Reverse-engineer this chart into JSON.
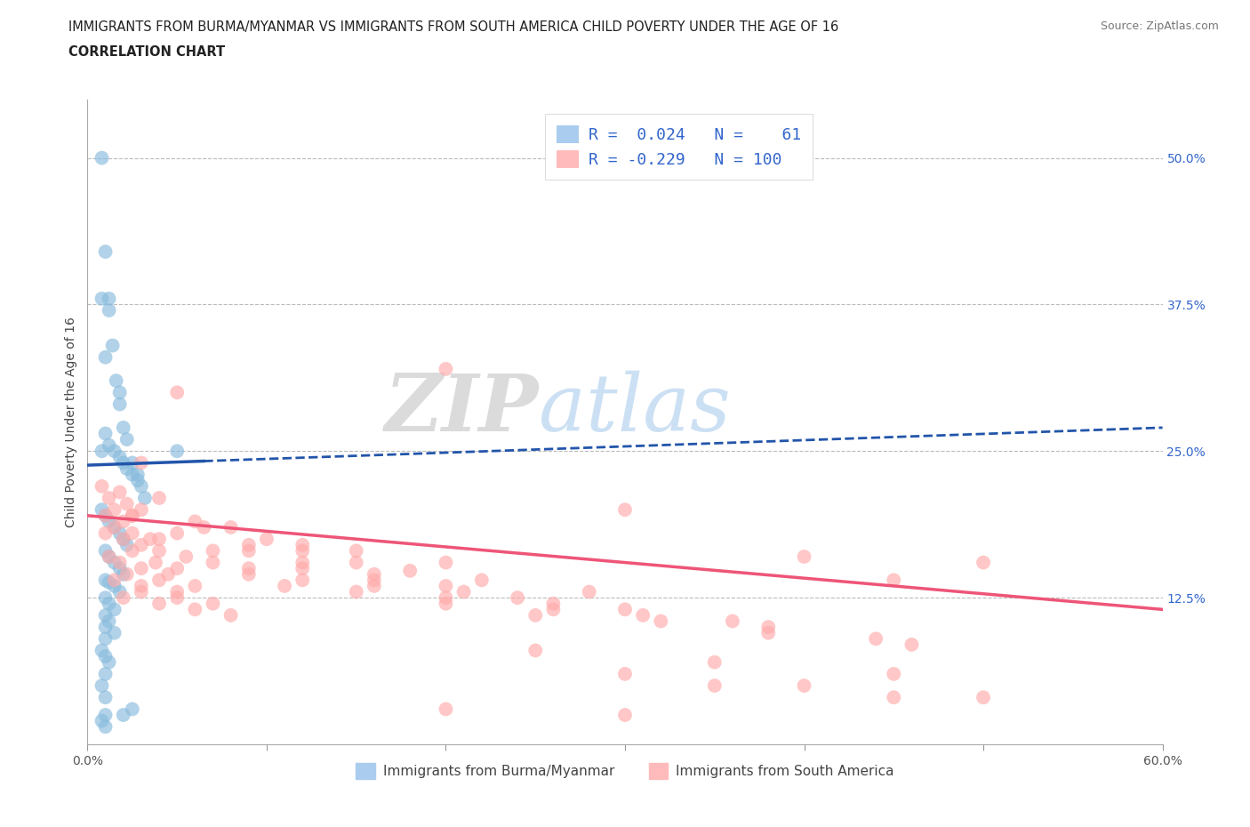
{
  "title_line1": "IMMIGRANTS FROM BURMA/MYANMAR VS IMMIGRANTS FROM SOUTH AMERICA CHILD POVERTY UNDER THE AGE OF 16",
  "title_line2": "CORRELATION CHART",
  "source_text": "Source: ZipAtlas.com",
  "ylabel": "Child Poverty Under the Age of 16",
  "xlim": [
    0.0,
    0.6
  ],
  "ylim": [
    0.0,
    0.55
  ],
  "hlines": [
    0.125,
    0.25,
    0.375,
    0.5
  ],
  "blue_color": "#88BBDD",
  "pink_color": "#FFAAAA",
  "blue_line_color": "#2255AA",
  "pink_line_color": "#EE5577",
  "blue_scatter_x": [
    0.008,
    0.01,
    0.012,
    0.014,
    0.016,
    0.018,
    0.02,
    0.022,
    0.025,
    0.028,
    0.01,
    0.012,
    0.015,
    0.018,
    0.02,
    0.022,
    0.025,
    0.028,
    0.03,
    0.032,
    0.008,
    0.01,
    0.012,
    0.015,
    0.018,
    0.02,
    0.022,
    0.01,
    0.012,
    0.015,
    0.018,
    0.02,
    0.01,
    0.012,
    0.015,
    0.018,
    0.01,
    0.012,
    0.015,
    0.01,
    0.012,
    0.01,
    0.015,
    0.01,
    0.008,
    0.01,
    0.012,
    0.01,
    0.008,
    0.01,
    0.025,
    0.02,
    0.008,
    0.05,
    0.008,
    0.01,
    0.012,
    0.018,
    0.01,
    0.008,
    0.01
  ],
  "blue_scatter_y": [
    0.5,
    0.42,
    0.38,
    0.34,
    0.31,
    0.29,
    0.27,
    0.26,
    0.24,
    0.23,
    0.265,
    0.255,
    0.25,
    0.245,
    0.24,
    0.235,
    0.23,
    0.225,
    0.22,
    0.21,
    0.2,
    0.195,
    0.19,
    0.185,
    0.18,
    0.175,
    0.17,
    0.165,
    0.16,
    0.155,
    0.15,
    0.145,
    0.14,
    0.138,
    0.135,
    0.13,
    0.125,
    0.12,
    0.115,
    0.11,
    0.105,
    0.1,
    0.095,
    0.09,
    0.08,
    0.075,
    0.07,
    0.06,
    0.05,
    0.04,
    0.03,
    0.025,
    0.02,
    0.25,
    0.38,
    0.33,
    0.37,
    0.3,
    0.025,
    0.25,
    0.015
  ],
  "pink_scatter_x": [
    0.008,
    0.01,
    0.012,
    0.015,
    0.018,
    0.02,
    0.022,
    0.025,
    0.01,
    0.015,
    0.02,
    0.025,
    0.03,
    0.035,
    0.04,
    0.012,
    0.018,
    0.025,
    0.03,
    0.038,
    0.045,
    0.05,
    0.015,
    0.022,
    0.03,
    0.04,
    0.05,
    0.06,
    0.02,
    0.03,
    0.04,
    0.05,
    0.06,
    0.07,
    0.08,
    0.025,
    0.04,
    0.055,
    0.07,
    0.09,
    0.11,
    0.03,
    0.05,
    0.07,
    0.09,
    0.12,
    0.15,
    0.04,
    0.065,
    0.09,
    0.12,
    0.16,
    0.2,
    0.06,
    0.09,
    0.12,
    0.16,
    0.2,
    0.25,
    0.08,
    0.12,
    0.16,
    0.21,
    0.26,
    0.1,
    0.15,
    0.2,
    0.26,
    0.32,
    0.12,
    0.18,
    0.24,
    0.31,
    0.38,
    0.15,
    0.22,
    0.3,
    0.38,
    0.46,
    0.2,
    0.28,
    0.36,
    0.44,
    0.2,
    0.3,
    0.4,
    0.5,
    0.25,
    0.35,
    0.45,
    0.3,
    0.4,
    0.5,
    0.35,
    0.45,
    0.03,
    0.05,
    0.2,
    0.3,
    0.45
  ],
  "pink_scatter_y": [
    0.22,
    0.195,
    0.21,
    0.2,
    0.215,
    0.19,
    0.205,
    0.195,
    0.18,
    0.185,
    0.175,
    0.18,
    0.17,
    0.175,
    0.165,
    0.16,
    0.155,
    0.165,
    0.15,
    0.155,
    0.145,
    0.15,
    0.14,
    0.145,
    0.135,
    0.14,
    0.13,
    0.135,
    0.125,
    0.13,
    0.12,
    0.125,
    0.115,
    0.12,
    0.11,
    0.195,
    0.175,
    0.16,
    0.155,
    0.145,
    0.135,
    0.2,
    0.18,
    0.165,
    0.15,
    0.14,
    0.13,
    0.21,
    0.185,
    0.165,
    0.15,
    0.135,
    0.12,
    0.19,
    0.17,
    0.155,
    0.14,
    0.125,
    0.11,
    0.185,
    0.165,
    0.145,
    0.13,
    0.115,
    0.175,
    0.155,
    0.135,
    0.12,
    0.105,
    0.17,
    0.148,
    0.125,
    0.11,
    0.095,
    0.165,
    0.14,
    0.115,
    0.1,
    0.085,
    0.155,
    0.13,
    0.105,
    0.09,
    0.32,
    0.2,
    0.16,
    0.155,
    0.08,
    0.07,
    0.06,
    0.06,
    0.05,
    0.04,
    0.05,
    0.04,
    0.24,
    0.3,
    0.03,
    0.025,
    0.14
  ],
  "blue_line_x0": 0.0,
  "blue_line_x_solid_end": 0.065,
  "blue_line_x1": 0.6,
  "blue_line_y0": 0.238,
  "blue_line_y1": 0.27,
  "pink_line_x0": 0.0,
  "pink_line_x1": 0.6,
  "pink_line_y0": 0.195,
  "pink_line_y1": 0.115
}
